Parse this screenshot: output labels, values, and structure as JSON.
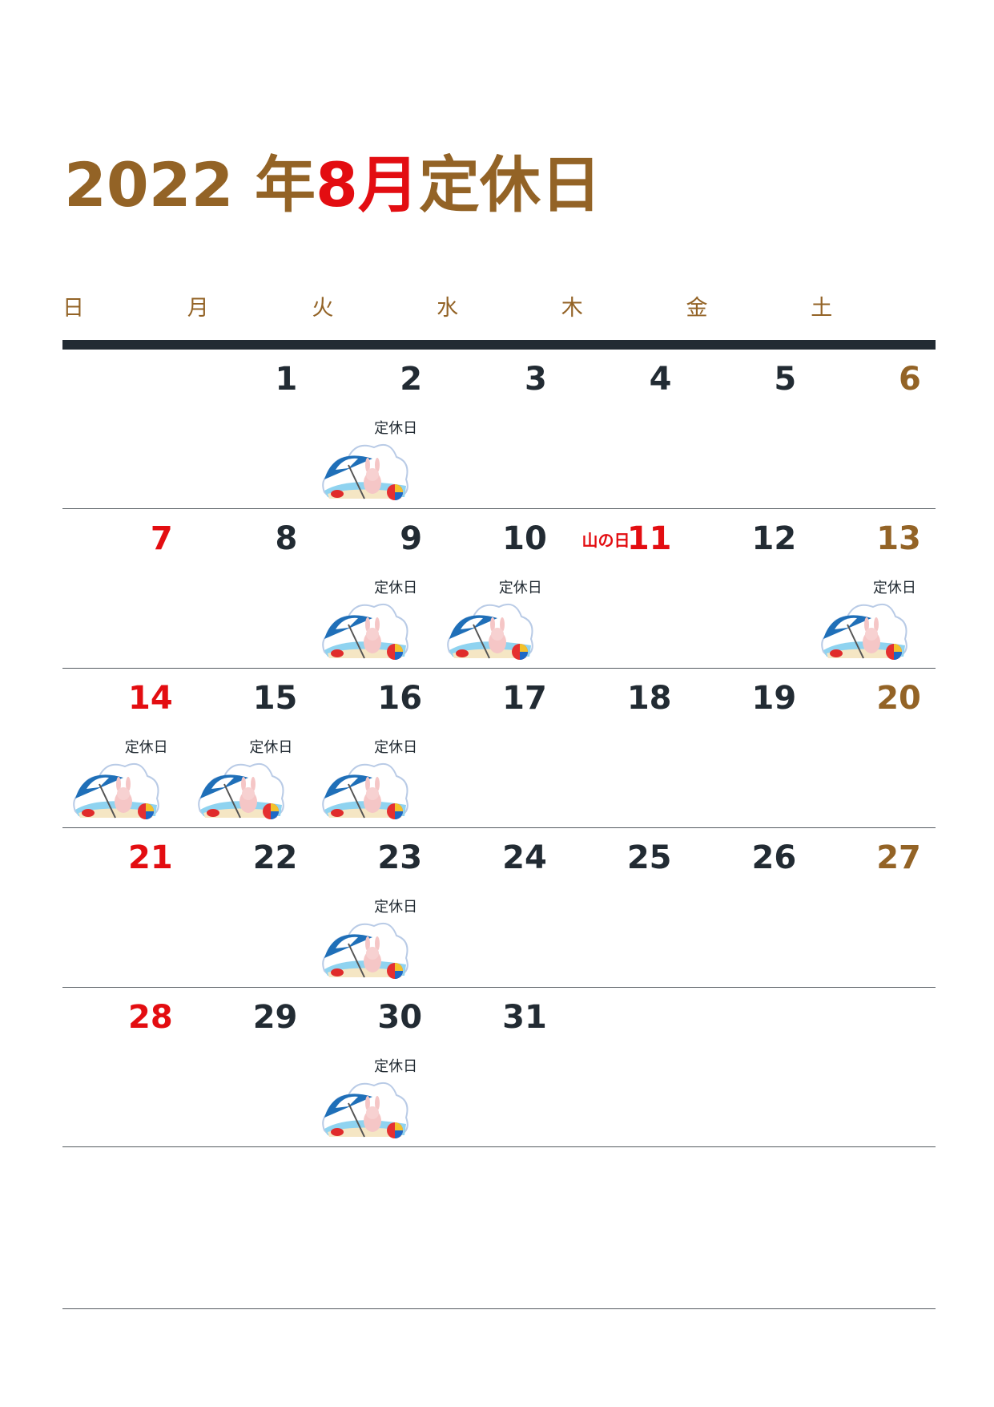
{
  "title": {
    "year": "2022",
    "year_suffix": "年",
    "month": "8",
    "month_suffix": "月",
    "label": "定休日"
  },
  "weekdays": [
    "日",
    "月",
    "火",
    "水",
    "木",
    "金",
    "土"
  ],
  "closed_label": "定休日",
  "weeks": [
    [
      null,
      {
        "d": "1"
      },
      {
        "d": "2",
        "closed": true
      },
      {
        "d": "3"
      },
      {
        "d": "4"
      },
      {
        "d": "5"
      },
      {
        "d": "6"
      }
    ],
    [
      {
        "d": "7"
      },
      {
        "d": "8"
      },
      {
        "d": "9",
        "closed": true
      },
      {
        "d": "10",
        "closed": true
      },
      {
        "d": "11",
        "holiday": "山の日"
      },
      {
        "d": "12"
      },
      {
        "d": "13",
        "closed": true
      }
    ],
    [
      {
        "d": "14",
        "closed": true
      },
      {
        "d": "15",
        "closed": true
      },
      {
        "d": "16",
        "closed": true
      },
      {
        "d": "17"
      },
      {
        "d": "18"
      },
      {
        "d": "19"
      },
      {
        "d": "20"
      }
    ],
    [
      {
        "d": "21"
      },
      {
        "d": "22"
      },
      {
        "d": "23",
        "closed": true
      },
      {
        "d": "24"
      },
      {
        "d": "25"
      },
      {
        "d": "26"
      },
      {
        "d": "27"
      }
    ],
    [
      {
        "d": "28"
      },
      {
        "d": "29"
      },
      {
        "d": "30",
        "closed": true
      },
      {
        "d": "31"
      },
      null,
      null,
      null
    ]
  ],
  "colors": {
    "brown": "#936326",
    "red": "#e30d11",
    "dark": "#222b33"
  },
  "icon": "beach-umbrella-rabbit-icon"
}
